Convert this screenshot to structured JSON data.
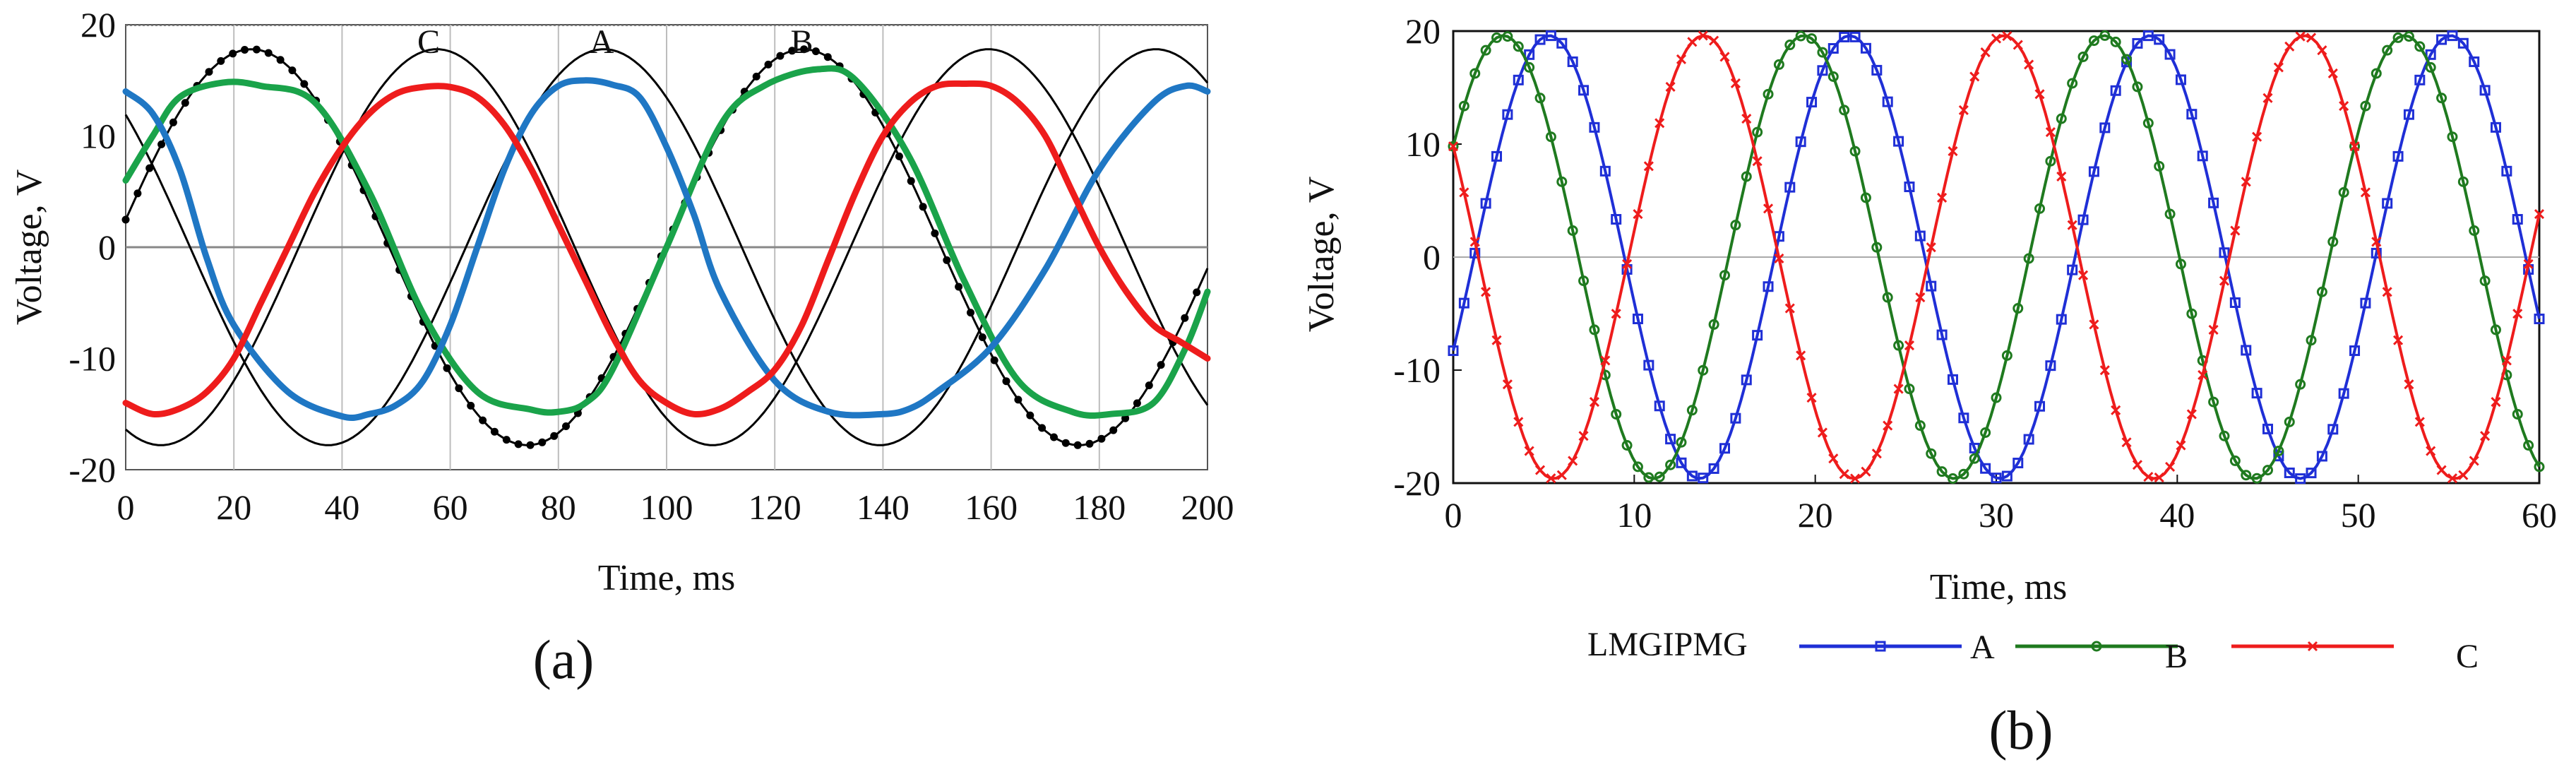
{
  "chart_data": [
    {
      "panel_label": "(a)",
      "type": "line",
      "xlabel": "Time, ms",
      "ylabel": "Voltage, V",
      "xlim": [
        0,
        200
      ],
      "ylim": [
        -20,
        20
      ],
      "xticks": [
        "0",
        "20",
        "40",
        "60",
        "80",
        "100",
        "120",
        "140",
        "160",
        "180",
        "200"
      ],
      "yticks": [
        "20",
        "10",
        "0",
        "-10",
        "-20"
      ],
      "grid": "vertical lines",
      "curve_labels": [
        {
          "text": "C",
          "x": 56
        },
        {
          "text": "A",
          "x": 88
        },
        {
          "text": "B",
          "x": 125
        }
      ],
      "series": [
        {
          "color": "#1aa34a",
          "x": [
            0,
            5,
            10,
            18,
            25,
            35,
            45,
            55,
            65,
            75,
            80,
            85,
            90,
            100,
            110,
            118,
            128,
            135,
            145,
            155,
            165,
            175,
            182,
            190,
            196,
            200
          ],
          "values": [
            6,
            10,
            13.5,
            14.8,
            14.5,
            13,
            5,
            -6,
            -13,
            -14.6,
            -14.8,
            -14,
            -11,
            0,
            11,
            14.5,
            16,
            15,
            8,
            -3,
            -12,
            -14.8,
            -15,
            -14,
            -9,
            -4
          ]
        },
        {
          "color": "#1f77c4",
          "x": [
            0,
            5,
            10,
            15,
            20,
            30,
            40,
            45,
            50,
            55,
            60,
            65,
            70,
            75,
            80,
            85,
            90,
            95,
            100,
            105,
            110,
            120,
            130,
            140,
            145,
            150,
            160,
            170,
            180,
            190,
            196,
            200
          ],
          "values": [
            14,
            12,
            7,
            -1,
            -7,
            -13,
            -15.2,
            -15,
            -14.2,
            -12,
            -7,
            0,
            7,
            12,
            14.5,
            15,
            14.6,
            13.5,
            9,
            3,
            -4,
            -12,
            -14.8,
            -15,
            -14.5,
            -13,
            -9,
            -2,
            7,
            13,
            14.5,
            14
          ]
        },
        {
          "color": "#ee1c1c",
          "x": [
            0,
            5,
            10,
            15,
            20,
            25,
            30,
            35,
            40,
            45,
            50,
            55,
            60,
            65,
            70,
            75,
            80,
            85,
            90,
            95,
            100,
            105,
            110,
            115,
            120,
            125,
            130,
            135,
            140,
            145,
            150,
            155,
            160,
            165,
            170,
            175,
            180,
            185,
            190,
            195,
            200
          ],
          "values": [
            -14,
            -15,
            -14.5,
            -13,
            -10,
            -5,
            0,
            5,
            9,
            12,
            13.8,
            14.4,
            14.4,
            13.5,
            11,
            7,
            2,
            -3,
            -8,
            -12,
            -14,
            -15,
            -14.5,
            -13,
            -11,
            -7,
            -1,
            5,
            10,
            13,
            14.5,
            14.7,
            14.5,
            13,
            10,
            5,
            0,
            -4,
            -7,
            -8.5,
            -10
          ]
        }
      ],
      "reference_curves": [
        {
          "color": "#000000",
          "style": "thin",
          "amplitude": 17.8,
          "phase_deg": 138
        },
        {
          "color": "#000000",
          "style": "dotted",
          "amplitude": 17.8,
          "phase_deg": 8
        },
        {
          "color": "#000000",
          "style": "thin",
          "amplitude": 17.8,
          "phase_deg": -113
        }
      ],
      "reference_period_ms": 102
    },
    {
      "panel_label": "(b)",
      "type": "line",
      "xlabel": "Time, ms",
      "ylabel": "Voltage, V",
      "xlim": [
        0,
        60
      ],
      "ylim": [
        -20,
        20
      ],
      "xticks": [
        "0",
        "10",
        "20",
        "30",
        "40",
        "50",
        "60"
      ],
      "yticks": [
        "20",
        "10",
        "0",
        "-10",
        "-20"
      ],
      "legend_position": "bottom",
      "legend_title": "LMGIPMG",
      "period_ms": 16.6,
      "amplitude": 19.6,
      "series": [
        {
          "name": "A",
          "color": "#1f2fd6",
          "marker": "square",
          "phase_deg": -25
        },
        {
          "name": "B",
          "color": "#1f7a1f",
          "marker": "circle",
          "phase_deg": 30
        },
        {
          "name": "C",
          "color": "#ee1c1c",
          "marker": "x",
          "phase_deg": 150
        }
      ]
    }
  ]
}
